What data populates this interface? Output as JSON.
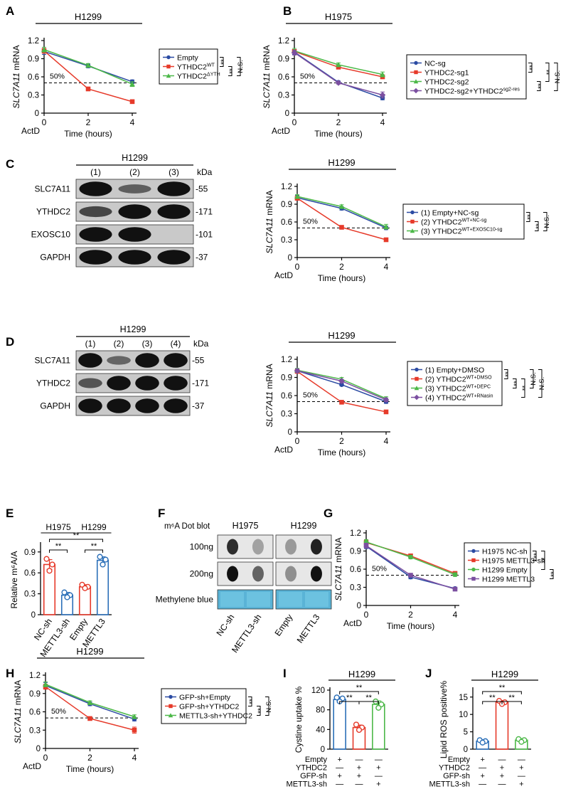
{
  "figure": {
    "panel_letters": [
      "A",
      "B",
      "C",
      "D",
      "E",
      "F",
      "G",
      "H",
      "I",
      "J"
    ]
  },
  "common": {
    "ylabel": "SLC7A11 mRNA",
    "xlabel": "Time (hours)",
    "actd": "ActD",
    "fifty": "50%",
    "sig_dd": "**",
    "sig_ns": "N.S."
  },
  "blots": {
    "C": {
      "title": "H1299",
      "lanes": [
        "(1)",
        "(2)",
        "(3)"
      ],
      "kda_label": "kDa",
      "rows": [
        {
          "name": "SLC7A11",
          "kda": "55"
        },
        {
          "name": "YTHDC2",
          "kda": "171"
        },
        {
          "name": "EXOSC10",
          "kda": "101"
        },
        {
          "name": "GAPDH",
          "kda": "37"
        }
      ]
    },
    "D": {
      "title": "H1299",
      "lanes": [
        "(1)",
        "(2)",
        "(3)",
        "(4)"
      ],
      "kda_label": "kDa",
      "rows": [
        {
          "name": "SLC7A11",
          "kda": "55"
        },
        {
          "name": "YTHDC2",
          "kda": "171"
        },
        {
          "name": "GAPDH",
          "kda": "37"
        }
      ]
    }
  },
  "dotblot": {
    "title": "m⁶A Dot  blot",
    "groups": [
      "H1975",
      "H1299"
    ],
    "rows": [
      "100ng",
      "200ng",
      "Methylene blue"
    ],
    "columns": [
      "NC-sh",
      "METTL3-sh",
      "Empty",
      "METTL3"
    ]
  },
  "grids": {
    "I": {
      "rows": [
        {
          "name": "Empty",
          "vals": [
            "+",
            "—",
            "—"
          ]
        },
        {
          "name": "YTHDC2",
          "vals": [
            "—",
            "+",
            "+"
          ]
        },
        {
          "name": "GFP-sh",
          "vals": [
            "+",
            "+",
            "—"
          ]
        },
        {
          "name": "METTL3-sh",
          "vals": [
            "—",
            "—",
            "+"
          ]
        }
      ]
    },
    "J": {
      "rows": [
        {
          "name": "Empty",
          "vals": [
            "+",
            "—",
            "—"
          ]
        },
        {
          "name": "YTHDC2",
          "vals": [
            "—",
            "+",
            "+"
          ]
        },
        {
          "name": "GFP-sh",
          "vals": [
            "+",
            "+",
            "—"
          ]
        },
        {
          "name": "METTL3-sh",
          "vals": [
            "—",
            "—",
            "+"
          ]
        }
      ]
    }
  },
  "chart_data": [
    {
      "panel": "A",
      "type": "line",
      "title": "H1299",
      "ylabel": "SLC7A11 mRNA",
      "xlabel": "Time (hours)",
      "x": [
        0,
        2,
        4
      ],
      "ylim": [
        0,
        1.2
      ],
      "yticks": [
        0,
        0.3,
        0.6,
        0.9,
        1.2
      ],
      "hline": 0.5,
      "series": [
        {
          "name": "Empty",
          "color": "#2b4ba3",
          "marker": "circle",
          "values": [
            1.02,
            0.78,
            0.52
          ],
          "err": [
            0.05,
            0.03,
            0.03
          ]
        },
        {
          "name": "YTHDC2^WT",
          "color": "#e63a2a",
          "marker": "square",
          "values": [
            1.03,
            0.4,
            0.19
          ],
          "err": [
            0.04,
            0.03,
            0.03
          ]
        },
        {
          "name": "YTHDC2^ΔYTH",
          "color": "#4cb848",
          "marker": "triangle",
          "values": [
            1.05,
            0.79,
            0.48
          ],
          "err": [
            0.04,
            0.03,
            0.04
          ]
        }
      ],
      "brackets": [
        {
          "from": 0,
          "to": 1,
          "text": "**"
        },
        {
          "from": 1,
          "to": 2,
          "text": "**"
        },
        {
          "from": 0,
          "to": 2,
          "text": "N.S."
        }
      ]
    },
    {
      "panel": "B",
      "type": "line",
      "title": "H1975",
      "ylabel": "SLC7A11 mRNA",
      "xlabel": "Time (hours)",
      "x": [
        0,
        2,
        4
      ],
      "ylim": [
        0,
        1.2
      ],
      "yticks": [
        0,
        0.3,
        0.6,
        0.9,
        1.2
      ],
      "hline": 0.5,
      "series": [
        {
          "name": "NC-sg",
          "color": "#2b4ba3",
          "marker": "circle",
          "values": [
            1.01,
            0.51,
            0.25
          ],
          "err": [
            0.04,
            0.02,
            0.03
          ]
        },
        {
          "name": "YTHDC2-sg1",
          "color": "#e63a2a",
          "marker": "square",
          "values": [
            1.02,
            0.76,
            0.6
          ],
          "err": [
            0.03,
            0.02,
            0.03
          ]
        },
        {
          "name": "YTHDC2-sg2",
          "color": "#4cb848",
          "marker": "triangle",
          "values": [
            1.03,
            0.8,
            0.64
          ],
          "err": [
            0.04,
            0.03,
            0.04
          ]
        },
        {
          "name": "YTHDC2-sg2+YTHDC2^sg2-res",
          "color": "#7b4fa0",
          "marker": "diamond",
          "values": [
            1.0,
            0.5,
            0.3
          ],
          "err": [
            0.04,
            0.02,
            0.05
          ]
        }
      ],
      "brackets": [
        {
          "from": 0,
          "to": 1,
          "text": "**"
        },
        {
          "from": 2,
          "to": 3,
          "text": "**"
        },
        {
          "from": 0,
          "to": 2,
          "text": "**"
        },
        {
          "from": 0,
          "to": 3,
          "text": "N.S."
        }
      ]
    },
    {
      "panel": "C",
      "type": "line",
      "title": "H1299",
      "ylabel": "SLC7A11 mRNA",
      "xlabel": "Time (hours)",
      "x": [
        0,
        2,
        4
      ],
      "ylim": [
        0,
        1.2
      ],
      "yticks": [
        0,
        0.3,
        0.6,
        0.9,
        1.2
      ],
      "hline": 0.5,
      "series": [
        {
          "name": "(1) Empty+NC-sg",
          "color": "#2b4ba3",
          "marker": "circle",
          "values": [
            1.01,
            0.83,
            0.5
          ],
          "err": [
            0.04,
            0.03,
            0.03
          ]
        },
        {
          "name": "(2) YTHDC2^WT+NC-sg",
          "color": "#e63a2a",
          "marker": "square",
          "values": [
            1.0,
            0.51,
            0.3
          ],
          "err": [
            0.03,
            0.02,
            0.03
          ]
        },
        {
          "name": "(3) YTHDC2^WT+EXOSC10-sg",
          "color": "#4cb848",
          "marker": "triangle",
          "values": [
            1.03,
            0.86,
            0.52
          ],
          "err": [
            0.03,
            0.03,
            0.04
          ]
        }
      ],
      "brackets": [
        {
          "from": 0,
          "to": 1,
          "text": "**"
        },
        {
          "from": 1,
          "to": 2,
          "text": "**"
        },
        {
          "from": 0,
          "to": 2,
          "text": "N.S."
        }
      ]
    },
    {
      "panel": "D",
      "type": "line",
      "title": "H1299",
      "ylabel": "SLC7A11 mRNA",
      "xlabel": "Time (hours)",
      "x": [
        0,
        2,
        4
      ],
      "ylim": [
        0,
        1.2
      ],
      "yticks": [
        0,
        0.3,
        0.6,
        0.9,
        1.2
      ],
      "hline": 0.5,
      "series": [
        {
          "name": "(1) Empty+DMSO",
          "color": "#2b4ba3",
          "marker": "circle",
          "values": [
            1.01,
            0.78,
            0.5
          ],
          "err": [
            0.03,
            0.02,
            0.03
          ]
        },
        {
          "name": "(2) YTHDC2^WT+DMSO",
          "color": "#e63a2a",
          "marker": "square",
          "values": [
            1.0,
            0.49,
            0.33
          ],
          "err": [
            0.03,
            0.02,
            0.02
          ]
        },
        {
          "name": "(3) YTHDC2^WT+DEPC",
          "color": "#4cb848",
          "marker": "triangle",
          "values": [
            1.02,
            0.87,
            0.55
          ],
          "err": [
            0.03,
            0.03,
            0.03
          ]
        },
        {
          "name": "(4) YTHDC2^WT+RNasin",
          "color": "#7b4fa0",
          "marker": "diamond",
          "values": [
            1.01,
            0.84,
            0.53
          ],
          "err": [
            0.03,
            0.03,
            0.03
          ]
        }
      ],
      "brackets": [
        {
          "from": 0,
          "to": 1,
          "text": "**"
        },
        {
          "from": 1,
          "to": 2,
          "text": "**"
        },
        {
          "from": 1,
          "to": 3,
          "text": "**"
        },
        {
          "from": 0,
          "to": 2,
          "text": "N.S."
        },
        {
          "from": 0,
          "to": 3,
          "text": "N.S."
        }
      ]
    },
    {
      "panel": "E",
      "type": "bar",
      "ylabel": "Relative m⁶A/A",
      "groups": [
        "H1975",
        "H1299"
      ],
      "categories": [
        "NC-sh",
        "METTL3-sh",
        "Empty",
        "METTL3"
      ],
      "colors": [
        "#e63a2a",
        "#2b6fb8",
        "#e63a2a",
        "#2b6fb8"
      ],
      "values": [
        0.72,
        0.28,
        0.4,
        0.78
      ],
      "err": [
        0.07,
        0.04,
        0.03,
        0.05
      ],
      "points": [
        [
          0.8,
          0.72,
          0.63
        ],
        [
          0.32,
          0.28,
          0.25
        ],
        [
          0.43,
          0.4,
          0.38
        ],
        [
          0.83,
          0.79,
          0.72
        ]
      ],
      "ylim": [
        0,
        1.0
      ],
      "yticks": [
        0,
        0.3,
        0.6,
        0.9
      ],
      "brackets": [
        {
          "from": 0,
          "to": 1,
          "text": "**"
        },
        {
          "from": 0,
          "to": 3,
          "text": "**"
        },
        {
          "from": 2,
          "to": 3,
          "text": "**"
        }
      ]
    },
    {
      "panel": "G",
      "type": "line",
      "ylabel": "SLC7A11 mRNA",
      "xlabel": "Time (hours)",
      "x": [
        0,
        2,
        4
      ],
      "ylim": [
        0,
        1.2
      ],
      "yticks": [
        0,
        0.3,
        0.6,
        0.9,
        1.2
      ],
      "hline": 0.5,
      "series": [
        {
          "name": "H1975 NC-sh",
          "color": "#2b4ba3",
          "marker": "circle",
          "values": [
            0.98,
            0.47,
            0.28
          ],
          "err": [
            0.04,
            0.03,
            0.02
          ]
        },
        {
          "name": "H1975 METTL3-sh",
          "color": "#e63a2a",
          "marker": "square",
          "values": [
            1.04,
            0.82,
            0.53
          ],
          "err": [
            0.04,
            0.03,
            0.03
          ]
        },
        {
          "name": "H1299 Empty",
          "color": "#4cb848",
          "marker": "circle",
          "values": [
            1.05,
            0.8,
            0.51
          ],
          "err": [
            0.04,
            0.03,
            0.03
          ]
        },
        {
          "name": "H1299 METTL3",
          "color": "#7b4fa0",
          "marker": "square",
          "values": [
            0.99,
            0.5,
            0.27
          ],
          "err": [
            0.04,
            0.03,
            0.02
          ]
        }
      ],
      "brackets": [
        {
          "from": 0,
          "to": 1,
          "text": "**"
        },
        {
          "from": 0,
          "to": 2,
          "text": "**"
        },
        {
          "from": 2,
          "to": 3,
          "text": "**"
        }
      ]
    },
    {
      "panel": "H",
      "type": "line",
      "title": "H1299",
      "ylabel": "SLC7A11 mRNA",
      "xlabel": "Time (hours)",
      "x": [
        0,
        2,
        4
      ],
      "ylim": [
        0,
        1.2
      ],
      "yticks": [
        0,
        0.3,
        0.6,
        0.9,
        1.2
      ],
      "hline": 0.5,
      "series": [
        {
          "name": "GFP-sh+Empty",
          "color": "#2b4ba3",
          "marker": "circle",
          "values": [
            1.03,
            0.73,
            0.48
          ],
          "err": [
            0.05,
            0.03,
            0.03
          ]
        },
        {
          "name": "GFP-sh+YTHDC2",
          "color": "#e63a2a",
          "marker": "square",
          "values": [
            1.01,
            0.49,
            0.3
          ],
          "err": [
            0.04,
            0.03,
            0.05
          ]
        },
        {
          "name": "METTL3-sh+YTHDC2",
          "color": "#4cb848",
          "marker": "triangle",
          "values": [
            1.05,
            0.75,
            0.52
          ],
          "err": [
            0.04,
            0.03,
            0.03
          ]
        }
      ],
      "brackets": [
        {
          "from": 0,
          "to": 1,
          "text": "**"
        },
        {
          "from": 1,
          "to": 2,
          "text": "**"
        },
        {
          "from": 0,
          "to": 2,
          "text": "N.S."
        }
      ]
    },
    {
      "panel": "I",
      "type": "bar",
      "title": "H1299",
      "ylabel": "Cystine uptake %",
      "categories": [
        "1",
        "2",
        "3"
      ],
      "colors": [
        "#2b6fb8",
        "#e63a2a",
        "#4cb848"
      ],
      "values": [
        101,
        44,
        91
      ],
      "err": [
        5,
        5,
        7
      ],
      "points": [
        [
          105,
          103,
          97
        ],
        [
          50,
          44,
          39
        ],
        [
          97,
          91,
          84
        ]
      ],
      "ylim": [
        0,
        120
      ],
      "yticks": [
        0,
        40,
        80,
        120
      ],
      "brackets": [
        {
          "from": 0,
          "to": 2,
          "text": "**"
        },
        {
          "from": 0,
          "to": 1,
          "text": "**"
        },
        {
          "from": 1,
          "to": 2,
          "text": "**"
        }
      ]
    },
    {
      "panel": "J",
      "type": "bar",
      "title": "H1299",
      "ylabel": "Lipid ROS positive%",
      "categories": [
        "1",
        "2",
        "3"
      ],
      "colors": [
        "#2b6fb8",
        "#e63a2a",
        "#4cb848"
      ],
      "values": [
        2.3,
        13.5,
        2.6
      ],
      "err": [
        0.4,
        0.5,
        0.4
      ],
      "points": [
        [
          2.6,
          2.3,
          1.9
        ],
        [
          13.9,
          13.5,
          13.0
        ],
        [
          2.9,
          2.6,
          2.1
        ]
      ],
      "ylim": [
        0,
        17
      ],
      "yticks": [
        0,
        5,
        10,
        15
      ],
      "brackets": [
        {
          "from": 0,
          "to": 2,
          "text": "**"
        },
        {
          "from": 0,
          "to": 1,
          "text": "**"
        },
        {
          "from": 1,
          "to": 2,
          "text": "**"
        }
      ]
    }
  ]
}
